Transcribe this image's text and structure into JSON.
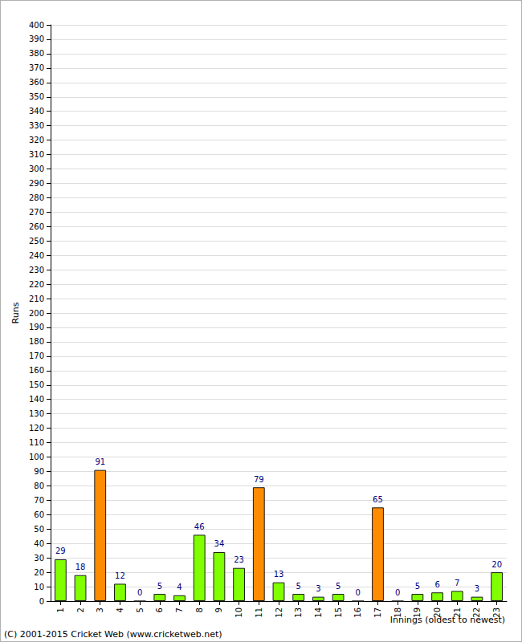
{
  "chart_data": {
    "type": "bar",
    "categories": [
      "1",
      "2",
      "3",
      "4",
      "5",
      "6",
      "7",
      "8",
      "9",
      "10",
      "11",
      "12",
      "13",
      "14",
      "15",
      "16",
      "17",
      "18",
      "19",
      "20",
      "21",
      "22",
      "23"
    ],
    "values": [
      29,
      18,
      91,
      12,
      0,
      5,
      4,
      46,
      34,
      23,
      79,
      13,
      5,
      3,
      5,
      0,
      65,
      0,
      5,
      6,
      7,
      3,
      20
    ],
    "colors": [
      "#80ff00",
      "#80ff00",
      "#ff8c00",
      "#80ff00",
      "#80ff00",
      "#80ff00",
      "#80ff00",
      "#80ff00",
      "#80ff00",
      "#80ff00",
      "#ff8c00",
      "#80ff00",
      "#80ff00",
      "#80ff00",
      "#80ff00",
      "#80ff00",
      "#ff8c00",
      "#80ff00",
      "#80ff00",
      "#80ff00",
      "#80ff00",
      "#80ff00",
      "#80ff00"
    ],
    "x_label": "Innings (oldest to newest)",
    "y_label": "Runs",
    "annotations": [
      "(C) 2001-2015 Cricket Web (www.cricketweb.net)"
    ],
    "ylim": [
      0,
      400
    ],
    "yticks": [
      0,
      10,
      20,
      30,
      40,
      50,
      60,
      70,
      80,
      90,
      100,
      110,
      120,
      130,
      140,
      150,
      160,
      170,
      180,
      190,
      200,
      210,
      220,
      230,
      240,
      250,
      260,
      270,
      280,
      290,
      300,
      310,
      320,
      330,
      340,
      350,
      360,
      370,
      380,
      390,
      400
    ],
    "grid": true,
    "data_labels": true
  }
}
